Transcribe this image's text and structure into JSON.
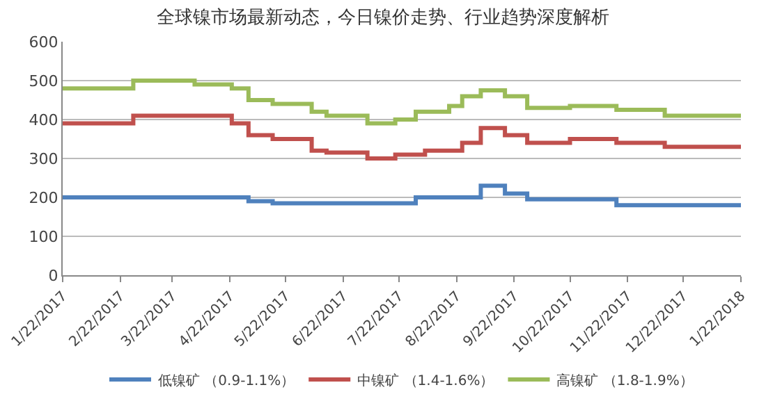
{
  "chart_data": {
    "type": "step",
    "title": "全球镍市场最新动态，今日镍价走势、行业趋势深度解析",
    "xlim": [
      "2017-01-22",
      "2018-01-22"
    ],
    "xticks": [
      {
        "value": "2017-01-22",
        "label": "1/22/2017"
      },
      {
        "value": "2017-02-22",
        "label": "2/22/2017"
      },
      {
        "value": "2017-03-22",
        "label": "3/22/2017"
      },
      {
        "value": "2017-04-22",
        "label": "4/22/2017"
      },
      {
        "value": "2017-05-22",
        "label": "5/22/2017"
      },
      {
        "value": "2017-06-22",
        "label": "6/22/2017"
      },
      {
        "value": "2017-07-22",
        "label": "7/22/2017"
      },
      {
        "value": "2017-08-22",
        "label": "8/22/2017"
      },
      {
        "value": "2017-09-22",
        "label": "9/22/2017"
      },
      {
        "value": "2017-10-22",
        "label": "10/22/2017"
      },
      {
        "value": "2017-11-22",
        "label": "11/22/2017"
      },
      {
        "value": "2017-12-22",
        "label": "12/22/2017"
      },
      {
        "value": "2018-01-22",
        "label": "1/22/2018"
      }
    ],
    "ylim": [
      0,
      600
    ],
    "yticks": [
      0,
      100,
      200,
      300,
      400,
      500,
      600
    ],
    "grid": "y",
    "legend": "bottom",
    "marker": "none",
    "line_style": "solid",
    "series": [
      {
        "name": "低镍矿 （0.9-1.1%）",
        "color": "#4f81bd",
        "x": [
          "2017-01-22",
          "2017-05-02",
          "2017-05-15",
          "2017-07-31",
          "2017-09-04",
          "2017-09-17",
          "2017-09-29",
          "2017-11-16",
          "2018-01-22"
        ],
        "values": [
          200,
          190,
          185,
          200,
          230,
          210,
          195,
          180,
          180
        ]
      },
      {
        "name": "中镍矿 （1.4-1.6%）",
        "color": "#c0504d",
        "x": [
          "2017-01-22",
          "2017-03-01",
          "2017-04-23",
          "2017-05-02",
          "2017-05-15",
          "2017-06-05",
          "2017-06-13",
          "2017-07-05",
          "2017-07-20",
          "2017-08-05",
          "2017-08-25",
          "2017-09-04",
          "2017-09-17",
          "2017-09-29",
          "2017-10-22",
          "2017-11-16",
          "2017-12-12",
          "2018-01-22"
        ],
        "values": [
          390,
          410,
          390,
          360,
          350,
          320,
          315,
          300,
          310,
          320,
          340,
          378,
          360,
          340,
          350,
          340,
          330,
          330
        ]
      },
      {
        "name": "高镍矿 （1.8-1.9%）",
        "color": "#9bbb59",
        "x": [
          "2017-01-22",
          "2017-03-01",
          "2017-04-03",
          "2017-04-23",
          "2017-05-02",
          "2017-05-15",
          "2017-06-05",
          "2017-06-13",
          "2017-07-05",
          "2017-07-20",
          "2017-07-31",
          "2017-08-18",
          "2017-08-25",
          "2017-09-04",
          "2017-09-17",
          "2017-09-29",
          "2017-10-22",
          "2017-11-16",
          "2017-12-12",
          "2018-01-22"
        ],
        "values": [
          480,
          500,
          490,
          480,
          450,
          440,
          420,
          410,
          390,
          400,
          420,
          435,
          460,
          475,
          460,
          430,
          435,
          425,
          410,
          410
        ]
      }
    ]
  }
}
